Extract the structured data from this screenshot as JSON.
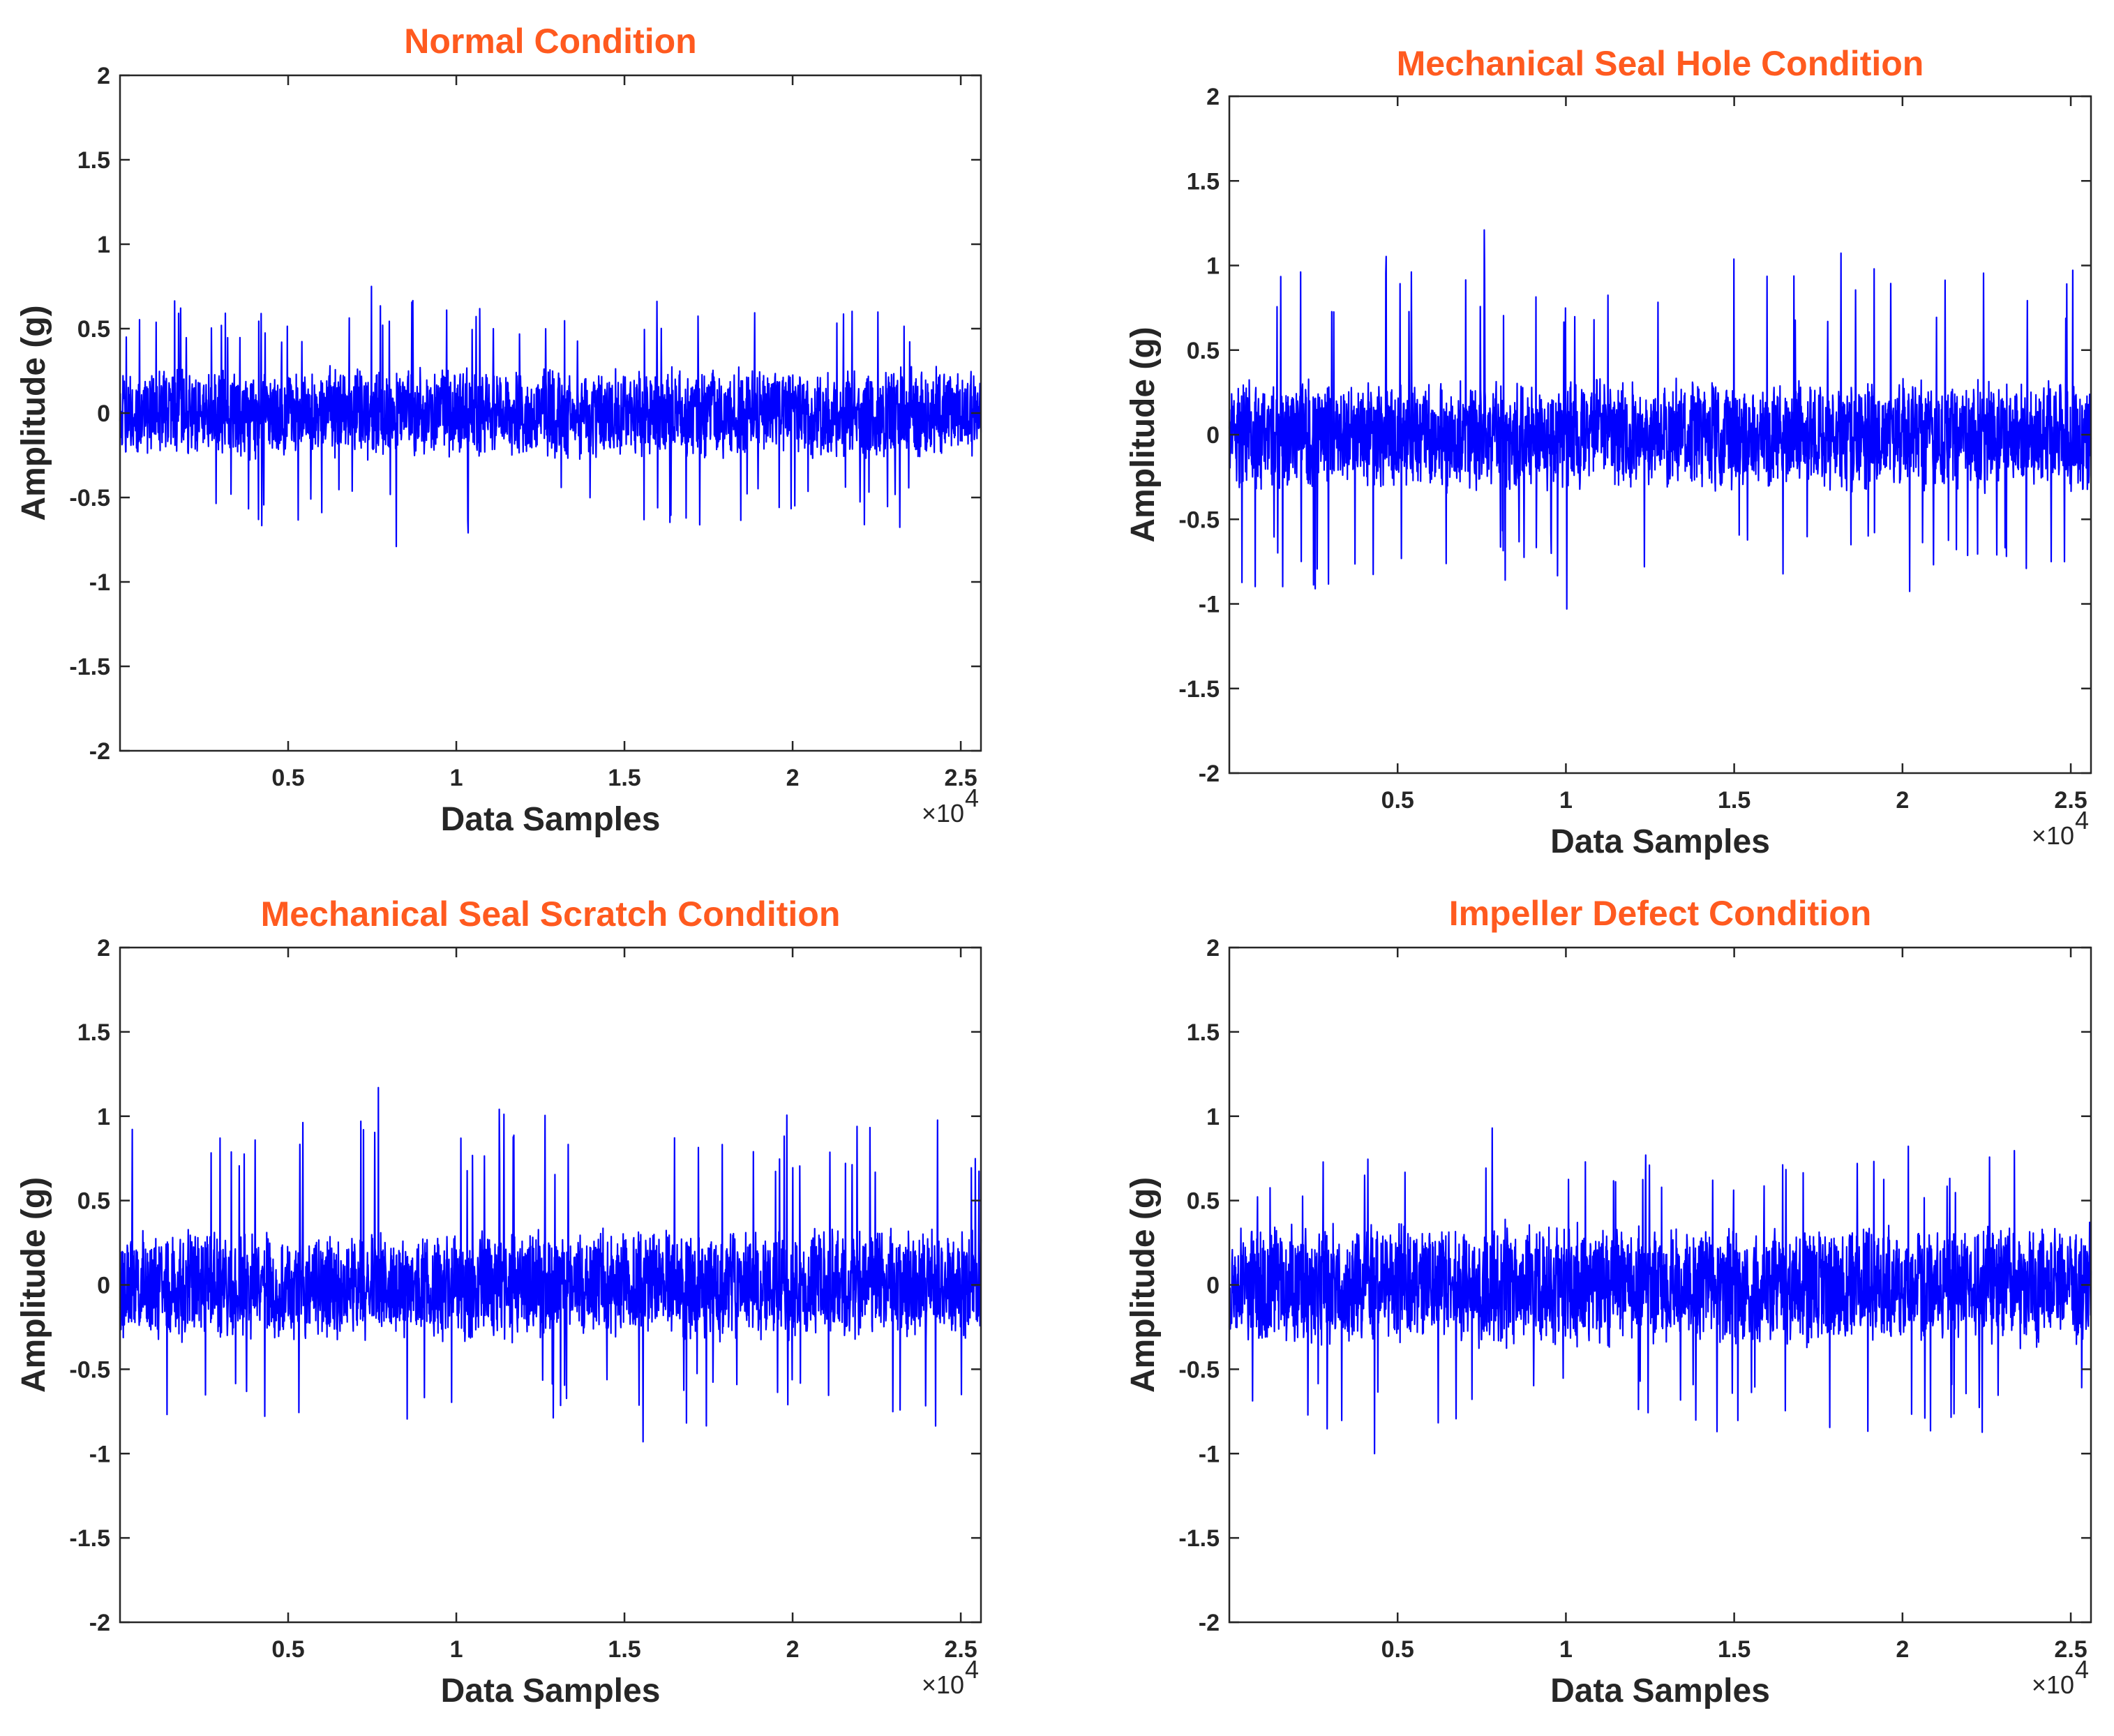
{
  "colors": {
    "title": "#ff5a1f",
    "signal": "#0000ff",
    "axis": "#262626"
  },
  "chart_data": [
    {
      "type": "line",
      "title": "Normal Condition",
      "xlabel": "Data Samples",
      "ylabel": "Amplitude (g)",
      "xlim": [
        0,
        25600
      ],
      "ylim": [
        -2,
        2
      ],
      "xticks": [
        5000,
        10000,
        15000,
        20000,
        25000
      ],
      "xtick_labels": [
        "0.5",
        "1",
        "1.5",
        "2",
        "2.5"
      ],
      "x_multiplier": "×10",
      "x_multiplier_exp": "4",
      "yticks": [
        2,
        1.5,
        1,
        0.5,
        0,
        -0.5,
        -1,
        -1.5,
        -2
      ],
      "ytick_labels": [
        "2",
        "1.5",
        "1",
        "0.5",
        "0",
        "-0.5",
        "-1",
        "-1.5",
        "-2"
      ],
      "series": [
        {
          "name": "Normal Condition",
          "envelope": 0.22,
          "peak_max": 0.75,
          "peak_min": -0.79,
          "seed": 11
        }
      ]
    },
    {
      "type": "line",
      "title": "Mechanical Seal Hole Condition",
      "xlabel": "Data Samples",
      "ylabel": "Amplitude (g)",
      "xlim": [
        0,
        25600
      ],
      "ylim": [
        -2,
        2
      ],
      "xticks": [
        5000,
        10000,
        15000,
        20000,
        25000
      ],
      "xtick_labels": [
        "0.5",
        "1",
        "1.5",
        "2",
        "2.5"
      ],
      "x_multiplier": "×10",
      "x_multiplier_exp": "4",
      "yticks": [
        2,
        1.5,
        1,
        0.5,
        0,
        -0.5,
        -1,
        -1.5,
        -2
      ],
      "ytick_labels": [
        "2",
        "1.5",
        "1",
        "0.5",
        "0",
        "-0.5",
        "-1",
        "-1.5",
        "-2"
      ],
      "series": [
        {
          "name": "Mechanical Seal Hole Condition",
          "envelope": 0.27,
          "peak_max": 1.21,
          "peak_min": -1.03,
          "seed": 23
        }
      ]
    },
    {
      "type": "line",
      "title": "Mechanical Seal Scratch Condition",
      "xlabel": "Data Samples",
      "ylabel": "Amplitude (g)",
      "xlim": [
        0,
        25600
      ],
      "ylim": [
        -2,
        2
      ],
      "xticks": [
        5000,
        10000,
        15000,
        20000,
        25000
      ],
      "xtick_labels": [
        "0.5",
        "1",
        "1.5",
        "2",
        "2.5"
      ],
      "x_multiplier": "×10",
      "x_multiplier_exp": "4",
      "yticks": [
        2,
        1.5,
        1,
        0.5,
        0,
        -0.5,
        -1,
        -1.5,
        -2
      ],
      "ytick_labels": [
        "2",
        "1.5",
        "1",
        "0.5",
        "0",
        "-0.5",
        "-1",
        "-1.5",
        "-2"
      ],
      "series": [
        {
          "name": "Mechanical Seal Scratch Condition",
          "envelope": 0.27,
          "peak_max": 1.17,
          "peak_min": -0.93,
          "seed": 37
        }
      ]
    },
    {
      "type": "line",
      "title": "Impeller Defect Condition",
      "xlabel": "Data Samples",
      "ylabel": "Amplitude (g)",
      "xlim": [
        0,
        25600
      ],
      "ylim": [
        -2,
        2
      ],
      "xticks": [
        5000,
        10000,
        15000,
        20000,
        25000
      ],
      "xtick_labels": [
        "0.5",
        "1",
        "1.5",
        "2",
        "2.5"
      ],
      "x_multiplier": "×10",
      "x_multiplier_exp": "4",
      "yticks": [
        2,
        1.5,
        1,
        0.5,
        0,
        -0.5,
        -1,
        -1.5,
        -2
      ],
      "ytick_labels": [
        "2",
        "1.5",
        "1",
        "0.5",
        "0",
        "-0.5",
        "-1",
        "-1.5",
        "-2"
      ],
      "series": [
        {
          "name": "Impeller Defect Condition",
          "envelope": 0.3,
          "peak_max": 0.93,
          "peak_min": -1.0,
          "seed": 53
        }
      ]
    }
  ]
}
